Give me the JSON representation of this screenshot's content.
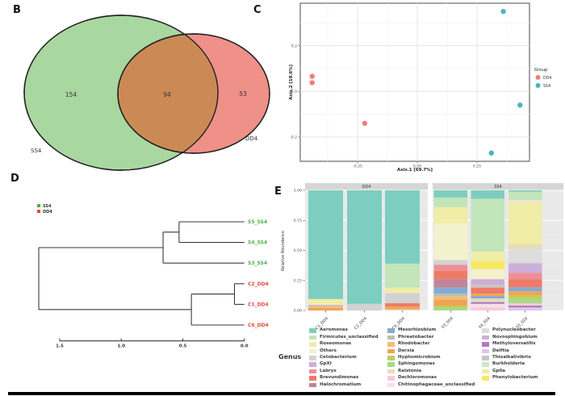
{
  "chart_data": [
    {
      "type": "venn",
      "panel": "B",
      "sets": [
        {
          "name": "SS4",
          "unique_count": 154,
          "color": "#a9d7a0"
        },
        {
          "name": "DD4",
          "unique_count": 53,
          "color": "#ef9089"
        }
      ],
      "overlap": {
        "count": 94,
        "color": "#cb8a55"
      }
    },
    {
      "type": "scatter",
      "panel": "C",
      "xlabel": "Axis.1  [69.7%]",
      "ylabel": "Axis.2  [18.6%]",
      "xticks": [
        "-0.25",
        "0.00",
        "0.25"
      ],
      "xtick_values": [
        -0.25,
        0,
        0.25
      ],
      "yticks": [
        "0.2",
        "0.0",
        "-0.2"
      ],
      "ytick_values": [
        0.2,
        0,
        -0.2
      ],
      "xlim": [
        -0.49,
        0.47
      ],
      "ylim": [
        -0.31,
        0.39
      ],
      "grid": true,
      "legend_title": "Group",
      "series": [
        {
          "name": "DD4",
          "color": "#f07f76",
          "points": [
            [
              -0.44,
              0.066
            ],
            [
              -0.44,
              0.038
            ],
            [
              -0.22,
              -0.14
            ]
          ]
        },
        {
          "name": "SS4",
          "color": "#43b7bf",
          "points": [
            [
              0.36,
              0.35
            ],
            [
              0.43,
              -0.06
            ],
            [
              0.31,
              -0.27
            ]
          ]
        }
      ]
    },
    {
      "type": "dendrogram",
      "panel": "D",
      "legend": [
        {
          "name": "SS4",
          "color": "#4db04d"
        },
        {
          "name": "DD4",
          "color": "#e8483e"
        }
      ],
      "scale_ticks": [
        "1.5",
        "1.0",
        "0.5",
        "0.0"
      ],
      "scale_values": [
        1.5,
        1.0,
        0.5,
        0.0
      ],
      "leaves": [
        {
          "name": "S5_SS4",
          "group": "SS4"
        },
        {
          "name": "S4_SS4",
          "group": "SS4"
        },
        {
          "name": "S3_SS4",
          "group": "SS4"
        },
        {
          "name": "C2_DD4",
          "group": "DD4"
        },
        {
          "name": "C1_DD4",
          "group": "DD4"
        },
        {
          "name": "C6_DD4",
          "group": "DD4"
        }
      ],
      "tree": {
        "d": 1.67,
        "children": [
          {
            "d": 0.66,
            "children": [
              {
                "d": 0.53,
                "children": [
                  {
                    "leaf": 0
                  },
                  {
                    "leaf": 1
                  }
                ]
              },
              {
                "leaf": 2
              }
            ]
          },
          {
            "d": 0.43,
            "children": [
              {
                "d": 0.08,
                "children": [
                  {
                    "leaf": 3
                  },
                  {
                    "leaf": 4
                  }
                ]
              },
              {
                "leaf": 5
              }
            ]
          }
        ]
      }
    },
    {
      "type": "bar",
      "stacked": true,
      "panel": "E",
      "ylabel": "Relative Abundance",
      "yticks": [
        "1.00",
        "0.75",
        "0.50",
        "0.25",
        "0.00"
      ],
      "ytick_values": [
        1.0,
        0.75,
        0.5,
        0.25,
        0.0
      ],
      "ylim": [
        0,
        1
      ],
      "legend_title": "Genus",
      "facets": [
        {
          "name": "DD4",
          "bars": [
            {
              "label": "C1_DD4",
              "segments": [
                {
                  "genus": "Aeromonas",
                  "value": 0.905
                },
                {
                  "genus": "Roseomonas",
                  "value": 0.05
                },
                {
                  "genus": "GpXI",
                  "value": 0.012
                },
                {
                  "genus": "Rhodobacter",
                  "value": 0.013
                },
                {
                  "genus": "Derxia",
                  "value": 0.02
                }
              ]
            },
            {
              "label": "C2_DD4",
              "segments": [
                {
                  "genus": "Aeromonas",
                  "value": 0.945
                },
                {
                  "genus": "Cetobacterium",
                  "value": 0.055
                }
              ]
            },
            {
              "label": "C6_DD4",
              "segments": [
                {
                  "genus": "Aeromonas",
                  "value": 0.61
                },
                {
                  "genus": "Firmicutes_unclassified",
                  "value": 0.2
                },
                {
                  "genus": "Roseomonas",
                  "value": 0.045
                },
                {
                  "genus": "Cetobacterium",
                  "value": 0.085
                },
                {
                  "genus": "Brevundimonas",
                  "value": 0.028
                },
                {
                  "genus": "Derxia",
                  "value": 0.022
                },
                {
                  "genus": "Ralstonia",
                  "value": 0.01
                }
              ]
            }
          ]
        },
        {
          "name": "SS4",
          "bars": [
            {
              "label": "S3_SS4",
              "segments": [
                {
                  "genus": "Aeromonas",
                  "value": 0.06
                },
                {
                  "genus": "Firmicutes_unclassified",
                  "value": 0.08
                },
                {
                  "genus": "Roseomonas",
                  "value": 0.135
                },
                {
                  "genus": "Others",
                  "value": 0.305
                },
                {
                  "genus": "Cetobacterium",
                  "value": 0.04
                },
                {
                  "genus": "Labrys",
                  "value": 0.05
                },
                {
                  "genus": "Brevundimonas",
                  "value": 0.07
                },
                {
                  "genus": "Halochromatium",
                  "value": 0.07
                },
                {
                  "genus": "Mesorhizobium",
                  "value": 0.05
                },
                {
                  "genus": "Phreatobacter",
                  "value": 0.02
                },
                {
                  "genus": "Rhodobacter",
                  "value": 0.03
                },
                {
                  "genus": "Derxia",
                  "value": 0.05
                },
                {
                  "genus": "Hyphomicrobium",
                  "value": 0.02
                },
                {
                  "genus": "Sphingomonas",
                  "value": 0.02
                }
              ]
            },
            {
              "label": "S4_SS4",
              "segments": [
                {
                  "genus": "Aeromonas",
                  "value": 0.07
                },
                {
                  "genus": "Firmicutes_unclassified",
                  "value": 0.44
                },
                {
                  "genus": "Roseomonas",
                  "value": 0.08
                },
                {
                  "genus": "Phenylobacterium",
                  "value": 0.065
                },
                {
                  "genus": "Others",
                  "value": 0.085
                },
                {
                  "genus": "GpXI",
                  "value": 0.045
                },
                {
                  "genus": "Thioalkalivibrio",
                  "value": 0.025
                },
                {
                  "genus": "Brevundimonas",
                  "value": 0.05
                },
                {
                  "genus": "Derxia",
                  "value": 0.02
                },
                {
                  "genus": "Mesorhizobium",
                  "value": 0.02
                },
                {
                  "genus": "Ralstonia",
                  "value": 0.03
                },
                {
                  "genus": "Methyloversatilis",
                  "value": 0.015
                },
                {
                  "genus": "Chitinophagaceae_unclassified",
                  "value": 0.03
                },
                {
                  "genus": "Dechloromonas",
                  "value": 0.025
                }
              ]
            },
            {
              "label": "S5_SS4",
              "segments": [
                {
                  "genus": "Aeromonas",
                  "value": 0.012
                },
                {
                  "genus": "Firmicutes_unclassified",
                  "value": 0.07
                },
                {
                  "genus": "Chitinophagaceae_unclassified",
                  "value": 0.015
                },
                {
                  "genus": "Roseomonas",
                  "value": 0.35
                },
                {
                  "genus": "Ralstonia",
                  "value": 0.045
                },
                {
                  "genus": "Polynucleobacter",
                  "value": 0.115
                },
                {
                  "genus": "Novosphingobium",
                  "value": 0.08
                },
                {
                  "genus": "Labrys",
                  "value": 0.055
                },
                {
                  "genus": "Brevundimonas",
                  "value": 0.065
                },
                {
                  "genus": "Mesorhizobium",
                  "value": 0.033
                },
                {
                  "genus": "Derxia",
                  "value": 0.035
                },
                {
                  "genus": "Hyphomicrobium",
                  "value": 0.03
                },
                {
                  "genus": "Sphingomonas",
                  "value": 0.035
                },
                {
                  "genus": "Dechloromonas",
                  "value": 0.02
                },
                {
                  "genus": "Methyloversatilis",
                  "value": 0.015
                },
                {
                  "genus": "Delftia",
                  "value": 0.025
                }
              ]
            }
          ]
        }
      ],
      "genus_colors": {
        "Aeromonas": "#7dcec0",
        "Firmicutes_unclassified": "#c2e5ba",
        "Roseomonas": "#f0eda6",
        "Others": "#f3f2cd",
        "Cetobacterium": "#d2d2d2",
        "GpXI": "#cfadd6",
        "Labrys": "#ee8f97",
        "Brevundimonas": "#ef7a66",
        "Halochromatium": "#bd8799",
        "Mesorhizobium": "#84abd6",
        "Phreatobacter": "#b9c0b4",
        "Rhodobacter": "#f4bd79",
        "Derxia": "#f0a455",
        "Hyphomicrobium": "#bcd05c",
        "Sphingomonas": "#a8d989",
        "Ralstonia": "#e6dcba",
        "Dechloromonas": "#f8c9d8",
        "Chitinophagaceae_unclassified": "#f6dfe9",
        "Polynucleobacter": "#dddddd",
        "Novosphingobium": "#cdb0d9",
        "Methyloversatilis": "#b078c2",
        "Delftia": "#d9c9e4",
        "Thioalkalivibrio": "#c6c6c6",
        "Burkholderia": "#cfe8c8",
        "Gplla": "#e9efa8",
        "Phenylobacterium": "#f8e964"
      },
      "legend_columns": [
        [
          "Aeromonas",
          "Firmicutes_unclassified",
          "Roseomonas",
          "Others",
          "Cetobacterium",
          "GpXI",
          "Labrys",
          "Brevundimonas",
          "Halochromatium"
        ],
        [
          "Mesorhizobium",
          "Phreatobacter",
          "Rhodobacter",
          "Derxia",
          "Hyphomicrobium",
          "Sphingomonas",
          "Ralstonia",
          "Dechloromonas",
          "Chitinophagaceae_unclassified"
        ],
        [
          "Polynucleobacter",
          "Novosphingobium",
          "Methyloversatilis",
          "Delftia",
          "Thioalkalivibrio",
          "Burkholderia",
          "Gplla",
          "Phenylobacterium"
        ]
      ]
    }
  ]
}
